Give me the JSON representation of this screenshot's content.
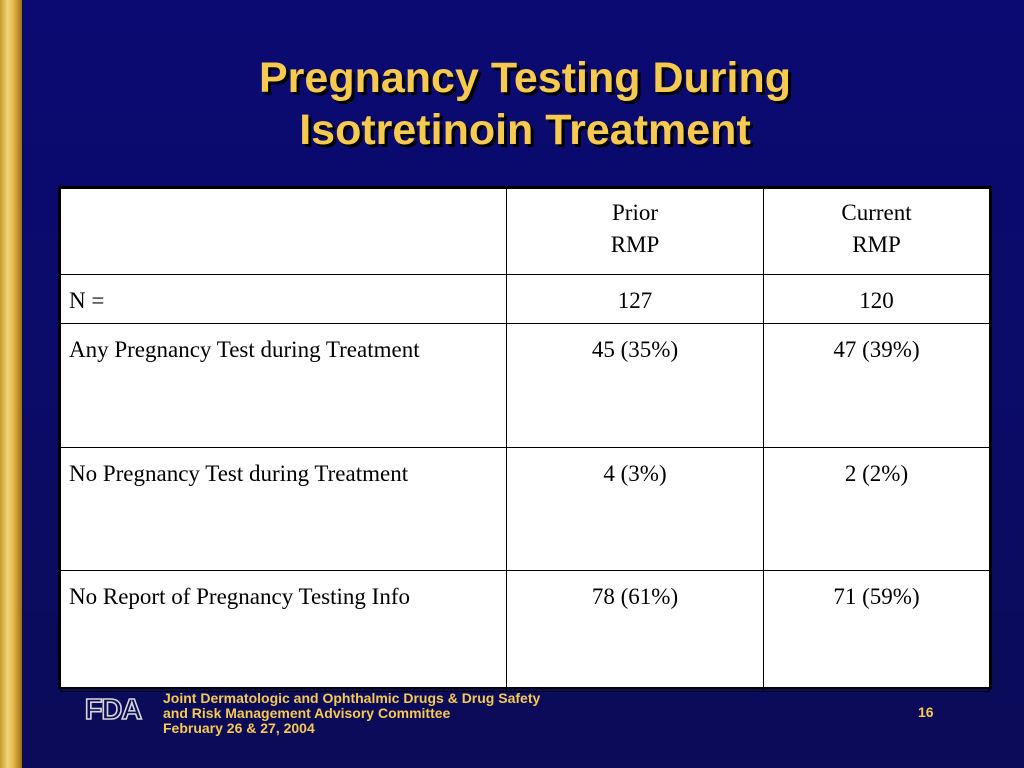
{
  "title": {
    "line1": "Pregnancy Testing During",
    "line2": "Isotretinoin Treatment"
  },
  "table": {
    "header": {
      "col0": "",
      "col1_line1": "Prior",
      "col1_line2": "RMP",
      "col2_line1": "Current",
      "col2_line2": "RMP"
    },
    "rows": [
      {
        "label": "N =",
        "prior": "127",
        "current": "120"
      },
      {
        "label": "Any Pregnancy Test during Treatment",
        "prior": "45 (35%)",
        "current": "47 (39%)"
      },
      {
        "label": "No Pregnancy Test during Treatment",
        "prior": "4 (3%)",
        "current": "2 (2%)"
      },
      {
        "label": "No Report of Pregnancy Testing Info",
        "prior": "78 (61%)",
        "current": "71 (59%)"
      }
    ]
  },
  "footer": {
    "logo_text": "FDA",
    "line1": "Joint Dermatologic and Ophthalmic Drugs & Drug Safety",
    "line2": "and Risk Management Advisory Committee",
    "line3": "February 26 & 27, 2004",
    "page_number": "16"
  },
  "colors": {
    "background": "#0a0a72",
    "title": "#f6c94f",
    "accent_bar": "#e6bb4a"
  }
}
